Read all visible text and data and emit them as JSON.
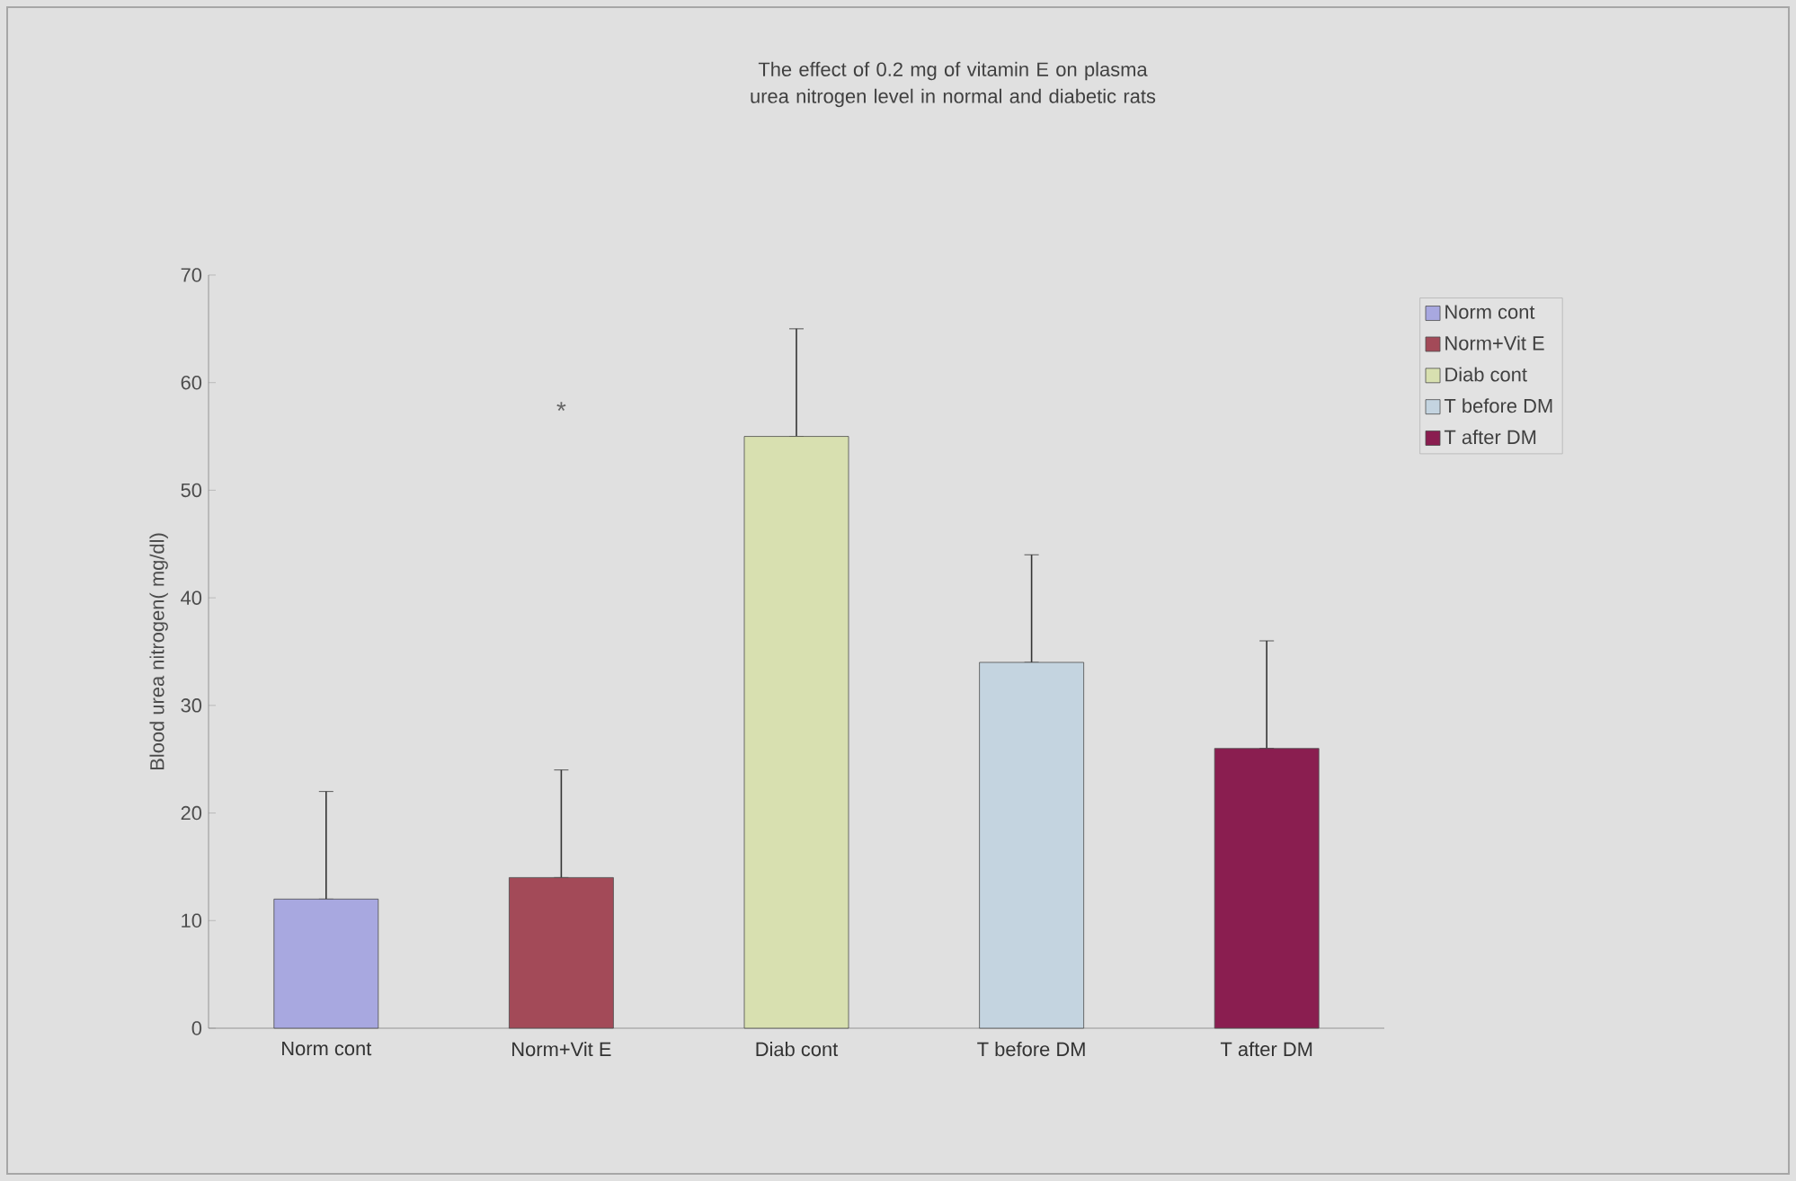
{
  "chart_data": {
    "type": "bar",
    "title": "The effect of 0.2 mg of vitamin E on plasma urea nitrogen level in normal and diabetic rats",
    "ylabel": "Blood urea nitrogen( mg/dl)",
    "categories": [
      "Norm cont",
      "Norm+Vit E",
      "Diab cont",
      "T before DM",
      "T after DM"
    ],
    "series": [
      {
        "name": "Norm cont",
        "color": "#a8a8e0",
        "values": [
          12,
          null,
          null,
          null,
          null
        ],
        "errors": [
          [
            12,
            22
          ],
          null,
          null,
          null,
          null
        ]
      },
      {
        "name": "Norm+Vit E",
        "color": "#a34a58",
        "values": [
          null,
          14,
          null,
          null,
          null
        ],
        "errors": [
          null,
          [
            14,
            24
          ],
          null,
          null,
          null
        ]
      },
      {
        "name": "Diab cont",
        "color": "#d8e0b0",
        "values": [
          null,
          null,
          55,
          null,
          null
        ],
        "errors": [
          null,
          null,
          [
            55,
            65
          ],
          null,
          null
        ]
      },
      {
        "name": "T before DM",
        "color": "#c4d4e0",
        "values": [
          null,
          null,
          null,
          34,
          null
        ],
        "errors": [
          null,
          null,
          null,
          [
            34,
            44
          ],
          null
        ]
      },
      {
        "name": "T after DM",
        "color": "#8a1e50",
        "values": [
          null,
          null,
          null,
          null,
          26
        ],
        "errors": [
          null,
          null,
          null,
          null,
          [
            26,
            36
          ]
        ]
      }
    ],
    "ylim": [
      0,
      70
    ],
    "yticks": [
      0,
      10,
      20,
      30,
      40,
      50,
      60,
      70
    ],
    "annotations": [
      "*"
    ],
    "grid": false,
    "legend": "right"
  }
}
